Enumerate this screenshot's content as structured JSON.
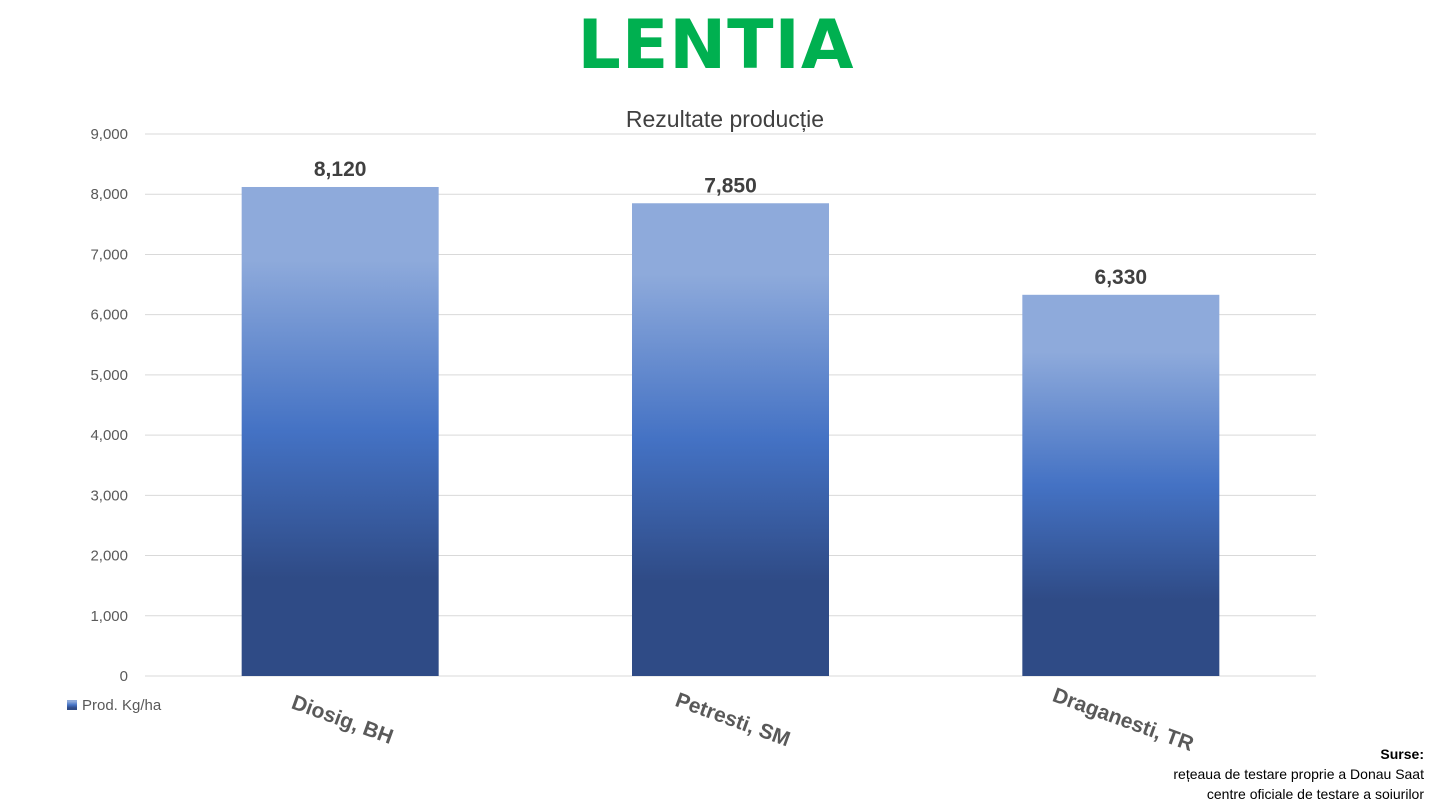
{
  "brand_title": "LENTIA",
  "sources": {
    "title": "Surse:",
    "lines": [
      "rețeaua de testare proprie a Donau Saat",
      "centre oficiale de testare a soiurilor"
    ]
  },
  "colors": {
    "brand_green": "#00b050",
    "bar_top": "#8eaadb",
    "bar_mid": "#4472c4",
    "bar_bottom": "#2f4b86",
    "grid": "#d9d9d9"
  },
  "chart_data": {
    "type": "bar",
    "title": "Rezultate producție",
    "categories": [
      "Diosig, BH",
      "Petresti, SM",
      "Draganesti, TR"
    ],
    "series": [
      {
        "name": "Prod. Kg/ha",
        "values": [
          8120,
          7850,
          6330
        ]
      }
    ],
    "data_labels": [
      "8,120",
      "7,850",
      "6,330"
    ],
    "y_ticks": [
      "0",
      "1,000",
      "2,000",
      "3,000",
      "4,000",
      "5,000",
      "6,000",
      "7,000",
      "8,000",
      "9,000"
    ],
    "ylim": [
      0,
      9000
    ],
    "grid": true,
    "legend": "bottom-left"
  }
}
